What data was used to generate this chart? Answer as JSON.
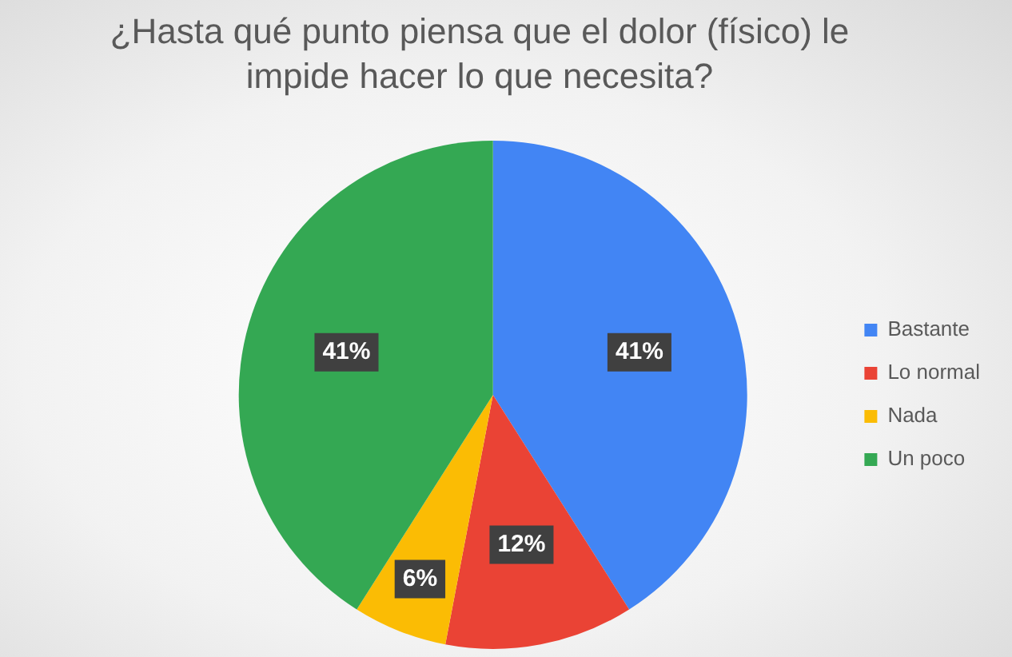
{
  "chart_data": {
    "type": "pie",
    "title": "¿Hasta qué punto piensa que el dolor (físico) le impide hacer lo que necesita?",
    "categories": [
      "Bastante",
      "Lo normal",
      "Nada",
      "Un poco"
    ],
    "values": [
      41,
      12,
      6,
      41
    ],
    "colors": [
      "#4285f4",
      "#ea4335",
      "#fbbc04",
      "#34a853"
    ],
    "value_labels": [
      "41%",
      "12%",
      "6%",
      "41%"
    ],
    "legend": "right"
  }
}
